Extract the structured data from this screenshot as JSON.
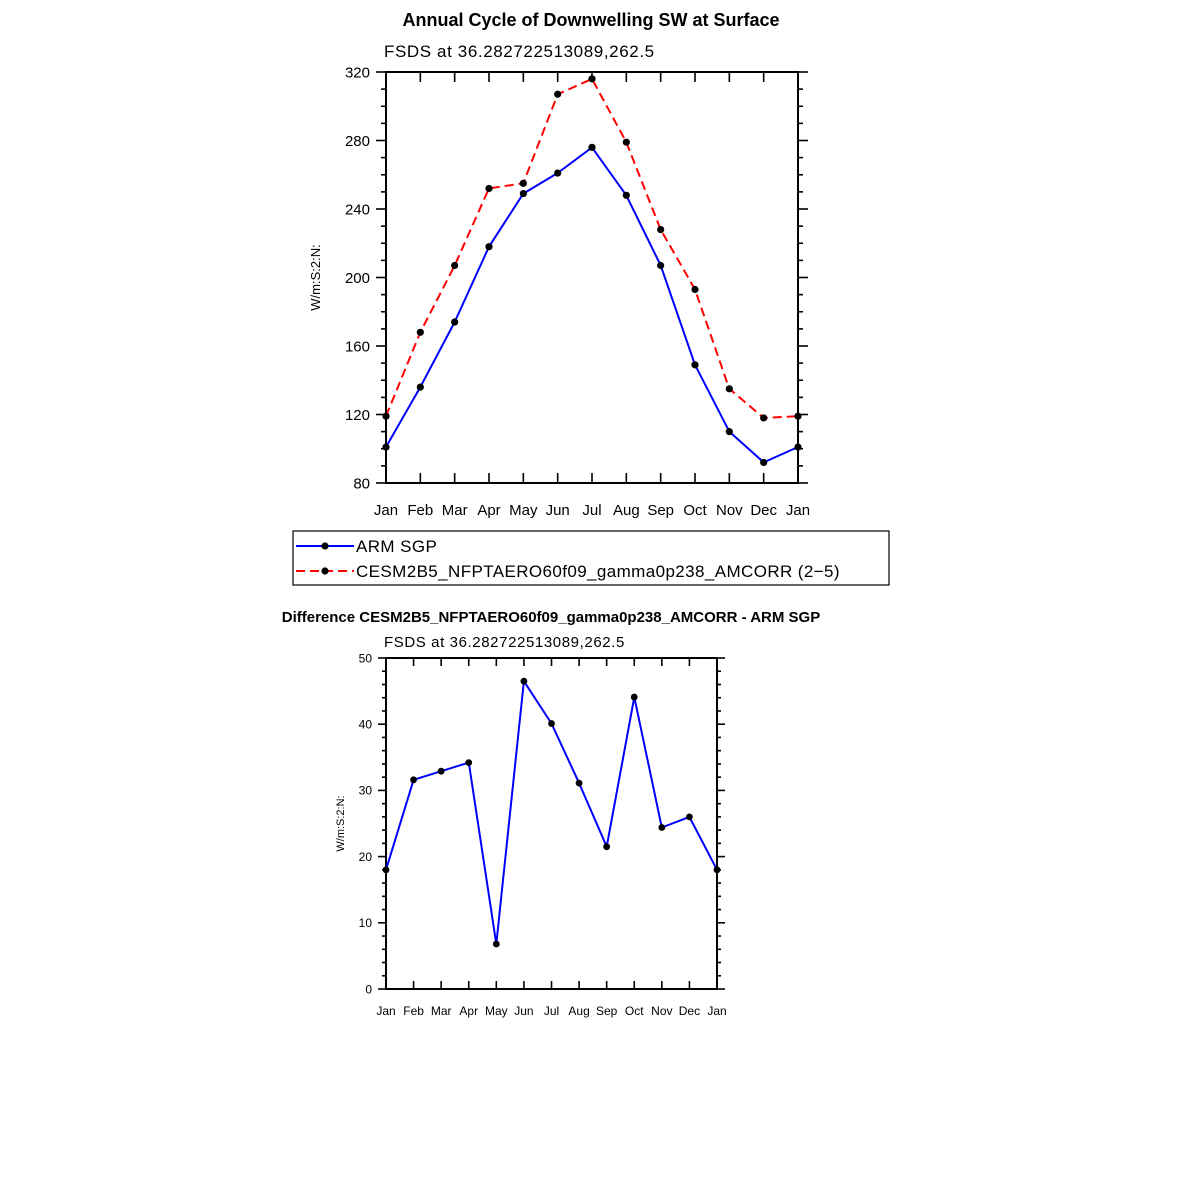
{
  "chart_data": [
    {
      "type": "line",
      "title": "Annual Cycle of Downwelling SW at Surface",
      "subtitle": "FSDS at 36.282722513089,262.5",
      "xlabel": "",
      "ylabel": "W/m:S:2:N:",
      "categories": [
        "Jan",
        "Feb",
        "Mar",
        "Apr",
        "May",
        "Jun",
        "Jul",
        "Aug",
        "Sep",
        "Oct",
        "Nov",
        "Dec",
        "Jan"
      ],
      "yticks": [
        "80",
        "120",
        "160",
        "200",
        "240",
        "280",
        "320"
      ],
      "ylim": [
        80,
        320
      ],
      "legend_position": "bottom",
      "series": [
        {
          "name": "ARM SGP",
          "color": "#0000ff",
          "dash": "solid",
          "values": [
            101,
            136,
            174,
            218,
            249,
            261,
            276,
            248,
            207,
            149,
            110,
            92,
            101
          ]
        },
        {
          "name": "CESM2B5_NFPTAERO60f09_gamma0p238_AMCORR (2−5)",
          "color": "#ff0000",
          "dash": "dashed",
          "values": [
            119,
            168,
            207,
            252,
            255,
            307,
            316,
            279,
            228,
            193,
            135,
            118,
            119
          ]
        }
      ]
    },
    {
      "type": "line",
      "title": "Difference CESM2B5_NFPTAERO60f09_gamma0p238_AMCORR - ARM SGP",
      "subtitle": "FSDS at 36.282722513089,262.5",
      "xlabel": "",
      "ylabel": "W/m:S:2:N:",
      "categories": [
        "Jan",
        "Feb",
        "Mar",
        "Apr",
        "May",
        "Jun",
        "Jul",
        "Aug",
        "Sep",
        "Oct",
        "Nov",
        "Dec",
        "Jan"
      ],
      "yticks": [
        "0",
        "10",
        "20",
        "30",
        "40",
        "50"
      ],
      "ylim": [
        0,
        50
      ],
      "series": [
        {
          "color": "#0000ff",
          "dash": "solid",
          "values": [
            18,
            31.6,
            32.9,
            34.2,
            6.8,
            46.5,
            40.1,
            31.1,
            21.5,
            44.1,
            24.4,
            26,
            18
          ]
        }
      ]
    }
  ]
}
